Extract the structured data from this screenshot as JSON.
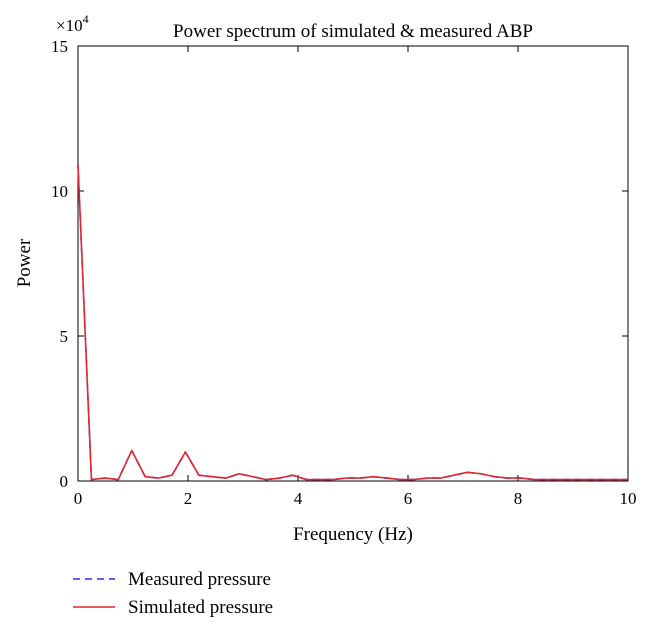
{
  "chart_data": {
    "type": "line",
    "title": "Power spectrum of simulated & measured ABP",
    "xlabel": "Frequency (Hz)",
    "ylabel": "Power",
    "y_multiplier_label": "×10",
    "y_multiplier_exponent": "4",
    "xlim": [
      0,
      10
    ],
    "ylim": [
      0,
      15
    ],
    "xticks": [
      "0",
      "2",
      "4",
      "6",
      "8",
      "10"
    ],
    "yticks": [
      "0",
      "5",
      "10",
      "15"
    ],
    "grid": false,
    "legend_position": "bottom-left, outside",
    "x": [
      0,
      0.244,
      0.488,
      0.732,
      0.977,
      1.221,
      1.465,
      1.709,
      1.953,
      2.197,
      2.441,
      2.686,
      2.93,
      3.174,
      3.418,
      3.662,
      3.906,
      4.15,
      4.395,
      4.639,
      4.883,
      5.127,
      5.371,
      5.615,
      5.859,
      6.104,
      6.348,
      6.592,
      6.836,
      7.08,
      7.324,
      7.568,
      7.813,
      8.057,
      8.301,
      8.545,
      8.789,
      9.033,
      9.277,
      9.521,
      9.766,
      10
    ],
    "series": [
      {
        "name": "Measured pressure",
        "color": "#2b2bff",
        "style": "dashed",
        "values": [
          10.9,
          0.05,
          0.1,
          0.05,
          1.05,
          0.15,
          0.1,
          0.2,
          1.0,
          0.2,
          0.15,
          0.1,
          0.25,
          0.15,
          0.05,
          0.1,
          0.2,
          0.05,
          0.05,
          0.05,
          0.1,
          0.1,
          0.15,
          0.1,
          0.05,
          0.05,
          0.1,
          0.1,
          0.2,
          0.3,
          0.25,
          0.15,
          0.1,
          0.1,
          0.05,
          0.05,
          0.05,
          0.05,
          0.05,
          0.05,
          0.05,
          0.05
        ]
      },
      {
        "name": "Simulated pressure",
        "color": "#e3262e",
        "style": "solid",
        "values": [
          10.9,
          0.05,
          0.1,
          0.05,
          1.05,
          0.15,
          0.1,
          0.2,
          1.0,
          0.2,
          0.15,
          0.1,
          0.25,
          0.15,
          0.05,
          0.1,
          0.2,
          0.05,
          0.05,
          0.05,
          0.1,
          0.1,
          0.15,
          0.1,
          0.05,
          0.05,
          0.1,
          0.1,
          0.2,
          0.3,
          0.25,
          0.15,
          0.1,
          0.1,
          0.05,
          0.05,
          0.05,
          0.05,
          0.05,
          0.05,
          0.05,
          0.05
        ]
      }
    ]
  }
}
